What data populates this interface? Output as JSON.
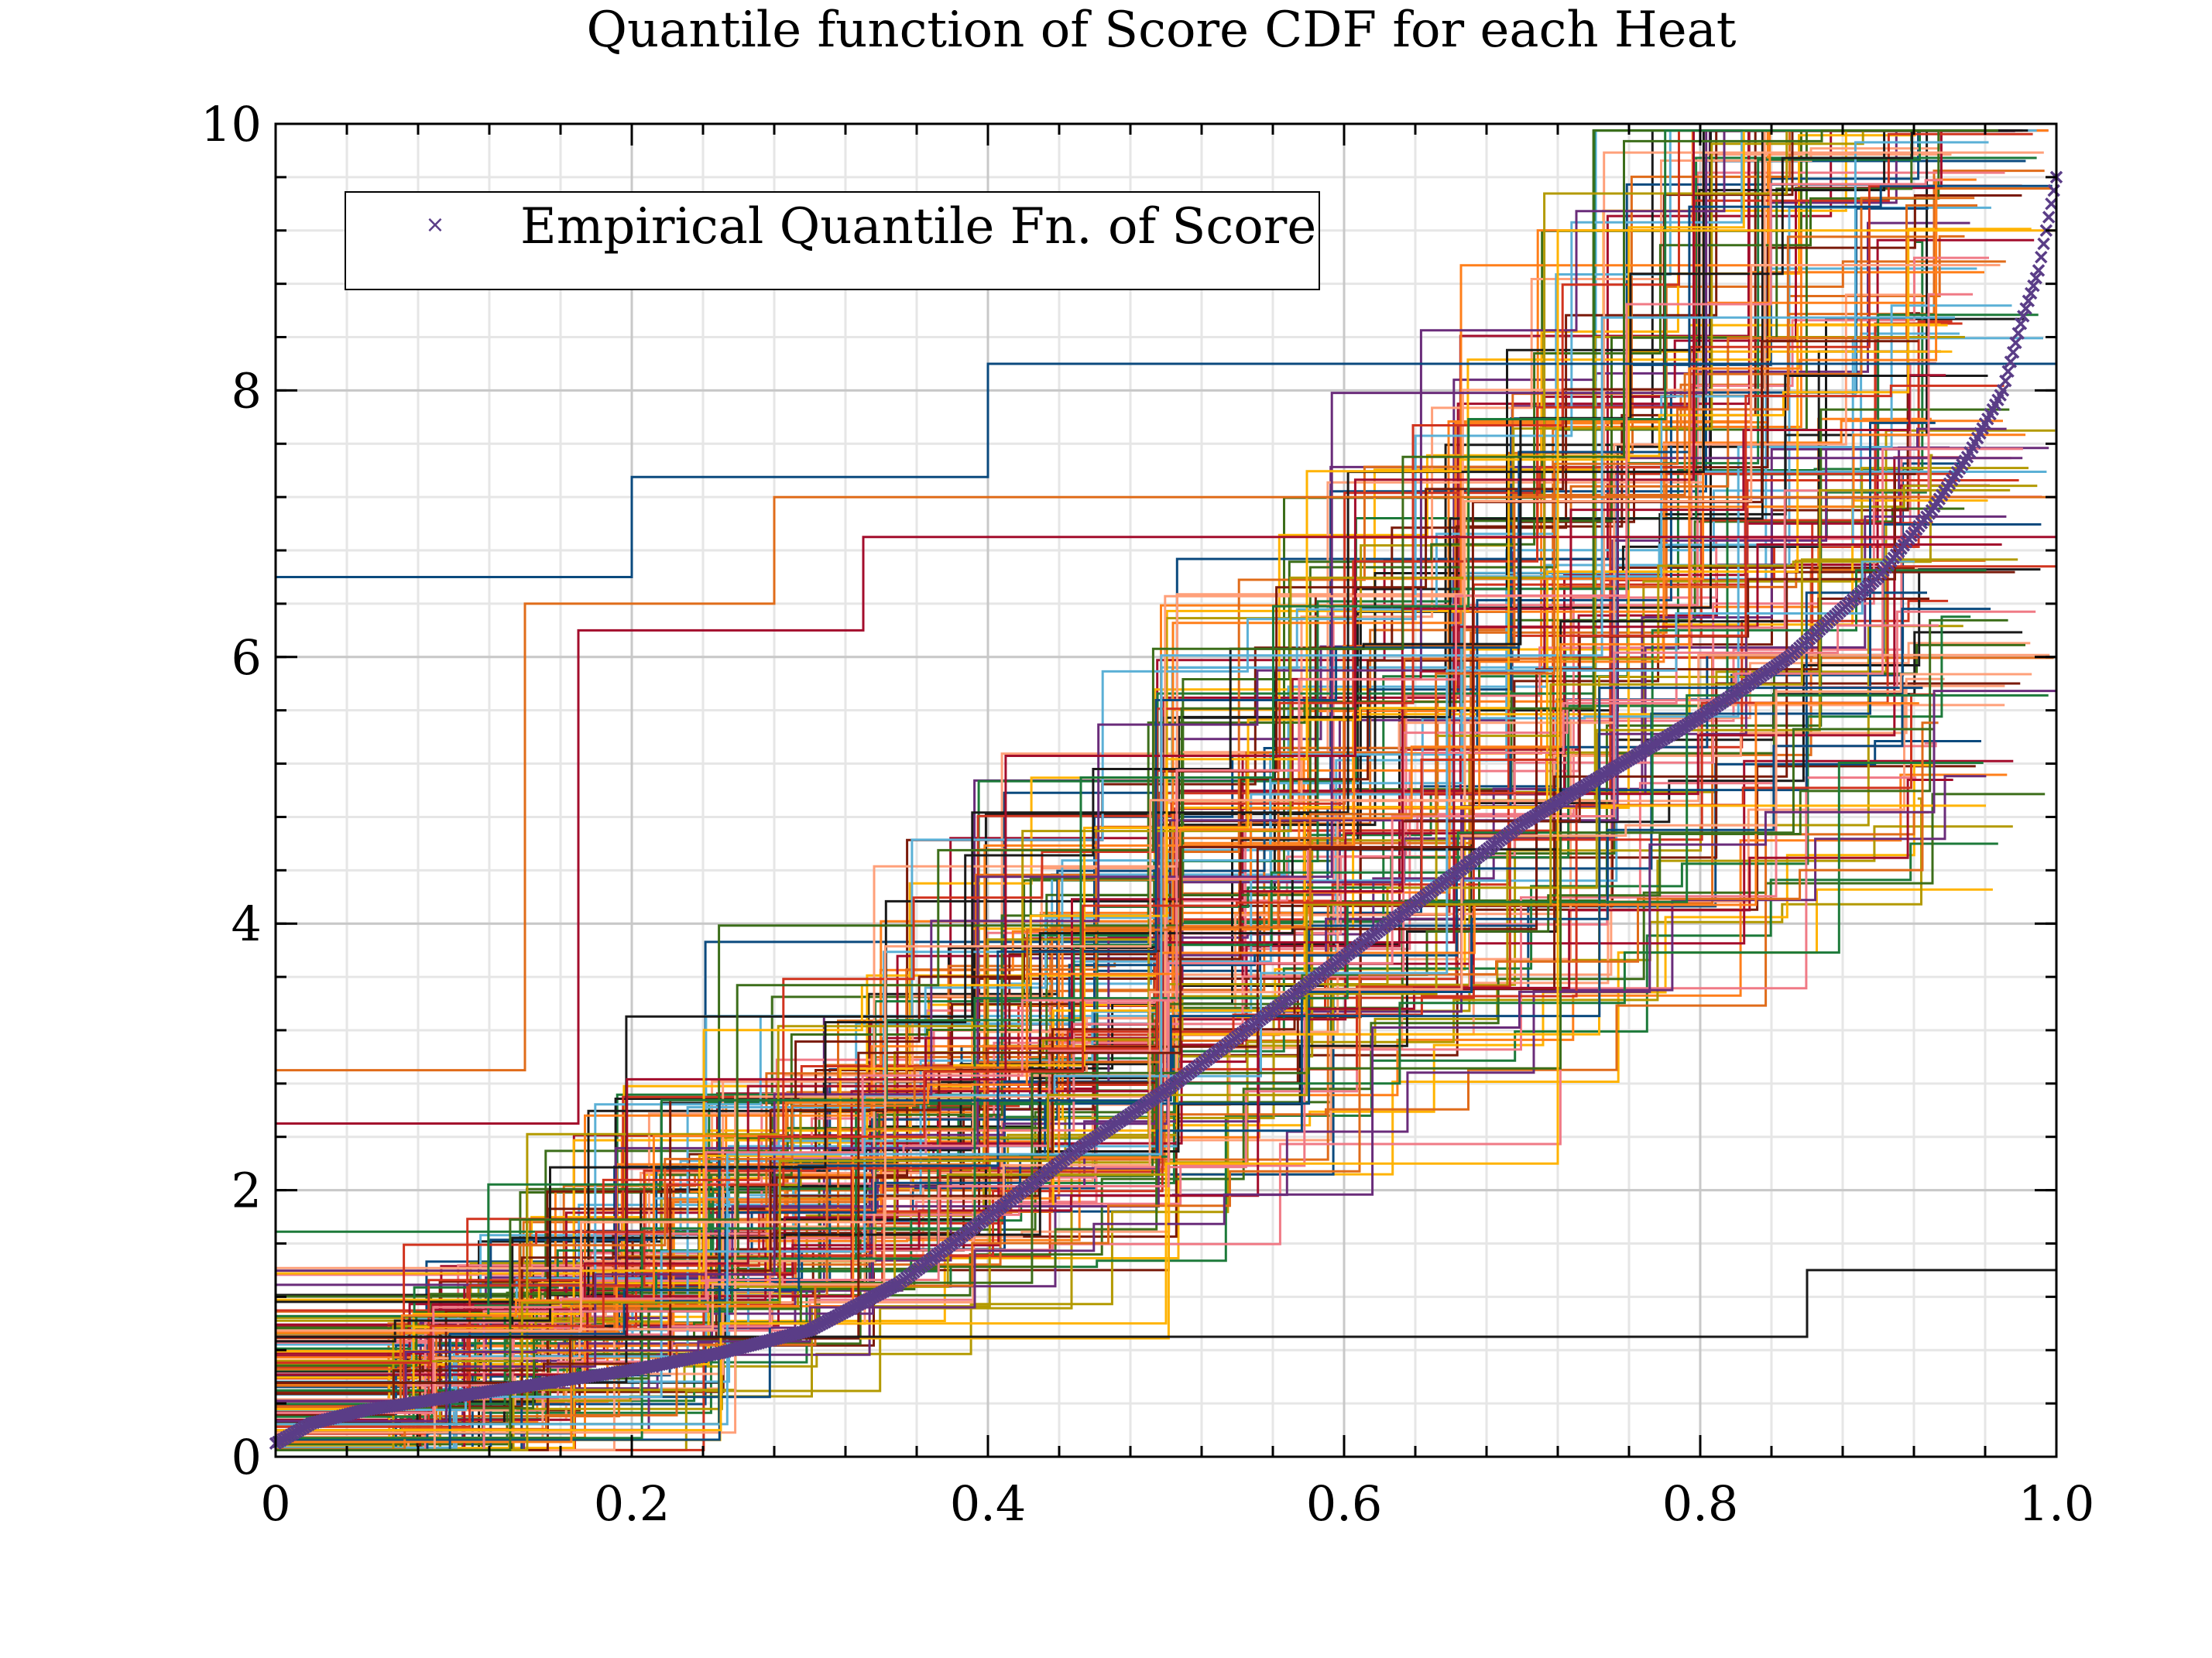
{
  "chart_data": {
    "type": "line",
    "title": "Quantile function of Score CDF for each Heat",
    "xlabel": "",
    "ylabel": "",
    "xlim": [
      0,
      1.0
    ],
    "ylim": [
      0,
      10
    ],
    "x_ticks": [
      "0",
      "0.2",
      "0.4",
      "0.6",
      "0.8",
      "1.0"
    ],
    "y_ticks": [
      "0",
      "2",
      "4",
      "6",
      "8",
      "10"
    ],
    "x_tick_values": [
      0,
      0.2,
      0.4,
      0.6,
      0.8,
      1.0
    ],
    "y_tick_values": [
      0,
      2,
      4,
      6,
      8,
      10
    ],
    "x_minor_step": 0.04,
    "y_minor_step": 0.4,
    "grid": true,
    "legend_position": "top-left",
    "legend": [
      {
        "label": "Empirical Quantile Fn. of Score",
        "marker": "x",
        "color": "#5a3d87"
      }
    ],
    "heat_palette": [
      "#0b4a7e",
      "#e06c1a",
      "#a30d2c",
      "#ffb300",
      "#1a1a1a",
      "#1d7a3a",
      "#5bb0d6",
      "#ff7f1a",
      "#6a2c7a",
      "#f07a86",
      "#7a1a0a",
      "#b39a00",
      "#d1341f",
      "#3c6e1a",
      "#ffa07a"
    ],
    "heat_series_count": 180,
    "example_heat_series": [
      {
        "x": [
          0,
          0.2,
          0.4,
          1.0
        ],
        "y": [
          6.6,
          7.35,
          8.2,
          8.2
        ]
      },
      {
        "x": [
          0,
          0.14,
          0.28,
          0.31,
          1.0
        ],
        "y": [
          2.9,
          6.4,
          7.2,
          7.2,
          7.2
        ]
      },
      {
        "x": [
          0,
          0.17,
          0.33,
          0.34,
          1.0
        ],
        "y": [
          2.5,
          6.2,
          6.9,
          6.9,
          6.9
        ]
      },
      {
        "x": [
          0,
          0.25,
          0.5,
          0.72,
          1.0
        ],
        "y": [
          0.2,
          1.0,
          2.2,
          9.2,
          9.2
        ]
      },
      {
        "x": [
          0,
          0.86,
          1.0
        ],
        "y": [
          0.9,
          1.4,
          1.85
        ]
      }
    ],
    "series": [
      {
        "name": "Empirical Quantile Fn. of Score",
        "marker": "x",
        "color": "#5a3d87",
        "x": [
          0,
          0.02,
          0.05,
          0.1,
          0.15,
          0.2,
          0.25,
          0.3,
          0.35,
          0.4,
          0.45,
          0.5,
          0.55,
          0.6,
          0.65,
          0.7,
          0.75,
          0.8,
          0.85,
          0.9,
          0.93,
          0.95,
          0.97,
          0.98,
          0.99,
          1.0
        ],
        "y": [
          0.1,
          0.25,
          0.35,
          0.45,
          0.55,
          0.65,
          0.78,
          0.95,
          1.3,
          1.8,
          2.3,
          2.75,
          3.25,
          3.75,
          4.25,
          4.75,
          5.15,
          5.55,
          6.0,
          6.6,
          7.1,
          7.5,
          8.0,
          8.5,
          8.9,
          9.6
        ]
      }
    ]
  }
}
